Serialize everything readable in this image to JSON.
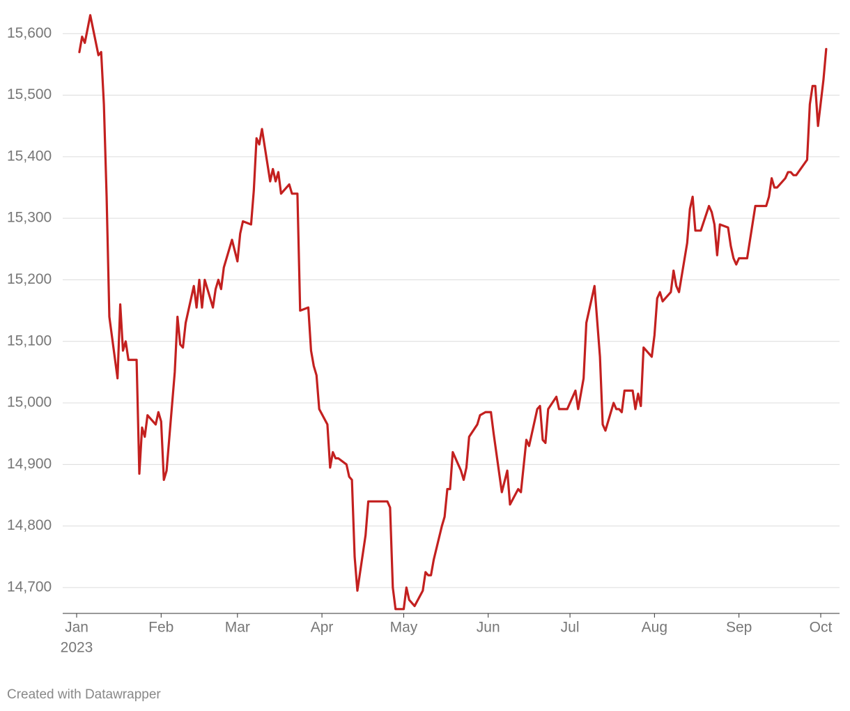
{
  "chart_data": {
    "type": "line",
    "xlim": [
      0,
      273
    ],
    "ylim": [
      14658,
      15632
    ],
    "xticks": [
      {
        "value": 0,
        "label": "Jan"
      },
      {
        "value": 31,
        "label": "Feb"
      },
      {
        "value": 59,
        "label": "Mar"
      },
      {
        "value": 90,
        "label": "Apr"
      },
      {
        "value": 120,
        "label": "May"
      },
      {
        "value": 151,
        "label": "Jun"
      },
      {
        "value": 181,
        "label": "Jul"
      },
      {
        "value": 212,
        "label": "Aug"
      },
      {
        "value": 243,
        "label": "Sep"
      },
      {
        "value": 273,
        "label": "Oct"
      }
    ],
    "year": "2023",
    "yticks": [
      {
        "value": 14700,
        "label": "14,700"
      },
      {
        "value": 14800,
        "label": "14,800"
      },
      {
        "value": 14900,
        "label": "14,900"
      },
      {
        "value": 15000,
        "label": "15,000"
      },
      {
        "value": 15100,
        "label": "15,100"
      },
      {
        "value": 15200,
        "label": "15,200"
      },
      {
        "value": 15300,
        "label": "15,300"
      },
      {
        "value": 15400,
        "label": "15,400"
      },
      {
        "value": 15500,
        "label": "15,500"
      },
      {
        "value": 15600,
        "label": "15,600"
      }
    ],
    "grid": true,
    "credit": "Created with Datawrapper",
    "x": [
      1,
      2,
      3,
      5,
      8,
      9,
      10,
      11,
      12,
      15,
      16,
      17,
      18,
      19,
      22,
      23,
      24,
      25,
      26,
      29,
      30,
      31,
      32,
      33,
      36,
      37,
      38,
      39,
      40,
      43,
      44,
      45,
      46,
      47,
      50,
      51,
      52,
      53,
      54,
      57,
      59,
      60,
      61,
      64,
      65,
      66,
      67,
      68,
      71,
      72,
      73,
      74,
      75,
      78,
      79,
      81,
      82,
      85,
      86,
      87,
      88,
      89,
      92,
      93,
      94,
      95,
      96,
      99,
      100,
      101,
      102,
      103,
      106,
      107,
      114,
      115,
      116,
      117,
      120,
      121,
      122,
      124,
      127,
      128,
      129,
      130,
      131,
      134,
      135,
      136,
      137,
      138,
      141,
      142,
      143,
      144,
      147,
      148,
      150,
      152,
      153,
      156,
      158,
      159,
      162,
      163,
      165,
      166,
      169,
      170,
      171,
      172,
      173,
      176,
      177,
      180,
      183,
      184,
      185,
      186,
      187,
      190,
      192,
      193,
      194,
      197,
      198,
      199,
      200,
      201,
      204,
      205,
      206,
      207,
      208,
      211,
      212,
      213,
      214,
      215,
      218,
      219,
      220,
      221,
      224,
      225,
      226,
      227,
      229,
      232,
      233,
      234,
      235,
      236,
      239,
      240,
      241,
      242,
      243,
      246,
      249,
      253,
      254,
      255,
      256,
      257,
      260,
      261,
      262,
      263,
      264,
      268,
      269,
      270,
      271,
      272,
      274,
      275
    ],
    "series": [
      {
        "color": "#c3201f",
        "values": [
          15570,
          15595,
          15585,
          15630,
          15565,
          15570,
          15485,
          15335,
          15140,
          15040,
          15160,
          15085,
          15100,
          15070,
          15070,
          14885,
          14960,
          14945,
          14980,
          14965,
          14985,
          14970,
          14875,
          14890,
          15050,
          15140,
          15095,
          15090,
          15130,
          15190,
          15155,
          15200,
          15155,
          15200,
          15155,
          15185,
          15200,
          15185,
          15220,
          15265,
          15230,
          15275,
          15295,
          15290,
          15345,
          15430,
          15420,
          15445,
          15360,
          15380,
          15360,
          15375,
          15340,
          15355,
          15340,
          15340,
          15150,
          15155,
          15085,
          15060,
          15045,
          14990,
          14965,
          14895,
          14920,
          14910,
          14910,
          14900,
          14880,
          14875,
          14750,
          14695,
          14785,
          14840,
          14840,
          14830,
          14700,
          14665,
          14665,
          14700,
          14680,
          14670,
          14695,
          14725,
          14720,
          14720,
          14745,
          14800,
          14815,
          14860,
          14860,
          14920,
          14890,
          14875,
          14895,
          14945,
          14965,
          14980,
          14985,
          14985,
          14950,
          14855,
          14890,
          14835,
          14860,
          14855,
          14940,
          14930,
          14990,
          14995,
          14940,
          14935,
          14990,
          15010,
          14990,
          14990,
          15020,
          14990,
          15015,
          15040,
          15130,
          15190,
          15075,
          14965,
          14955,
          15000,
          14990,
          14990,
          14985,
          15020,
          15020,
          14990,
          15015,
          14995,
          15090,
          15075,
          15110,
          15170,
          15180,
          15165,
          15180,
          15215,
          15190,
          15180,
          15260,
          15315,
          15335,
          15280,
          15280,
          15320,
          15310,
          15290,
          15240,
          15290,
          15285,
          15255,
          15235,
          15225,
          15235,
          15235,
          15320,
          15320,
          15335,
          15365,
          15350,
          15350,
          15365,
          15375,
          15375,
          15370,
          15370,
          15395,
          15485,
          15515,
          15515,
          15450,
          15525,
          15575
        ]
      }
    ]
  }
}
